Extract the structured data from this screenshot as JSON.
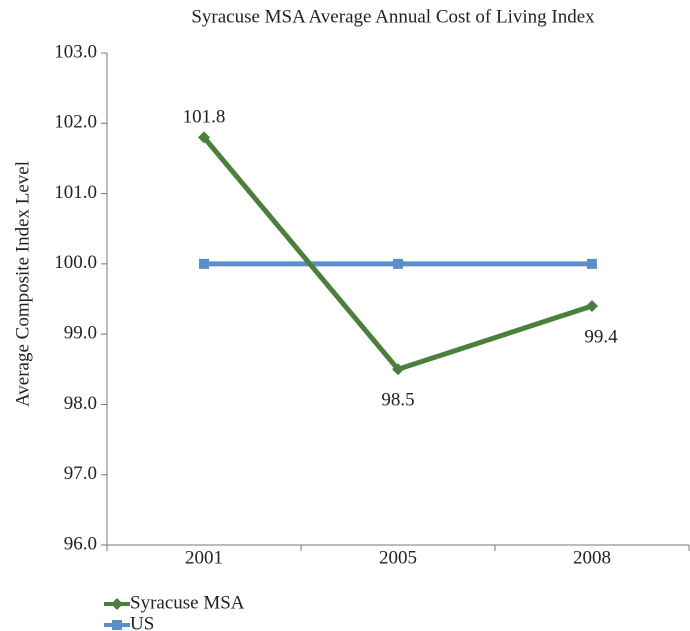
{
  "chart_data": {
    "type": "line",
    "title": "Syracuse MSA Average Annual Cost of Living Index",
    "y_label": "Average Composite Index Level",
    "categories": [
      "2001",
      "2005",
      "2008"
    ],
    "series": [
      {
        "name": "Syracuse MSA",
        "color": "#4d7f3c",
        "marker": "diamond",
        "values": [
          101.8,
          98.5,
          99.4
        ],
        "data_labels": true
      },
      {
        "name": "US",
        "color": "#5b8fc8",
        "marker": "square",
        "values": [
          100,
          100,
          100
        ],
        "data_labels": false
      }
    ],
    "ylim": [
      96,
      103
    ],
    "yticks": [
      {
        "value": 96,
        "label": "96.0"
      },
      {
        "value": 97,
        "label": "97.0"
      },
      {
        "value": 98,
        "label": "98.0"
      },
      {
        "value": 99,
        "label": "99.0"
      },
      {
        "value": 100,
        "label": "100.0"
      },
      {
        "value": 101,
        "label": "101.0"
      },
      {
        "value": 102,
        "label": "102.0"
      },
      {
        "value": 103,
        "label": "103.0"
      }
    ],
    "grid": false,
    "legend": "bottom-left"
  }
}
